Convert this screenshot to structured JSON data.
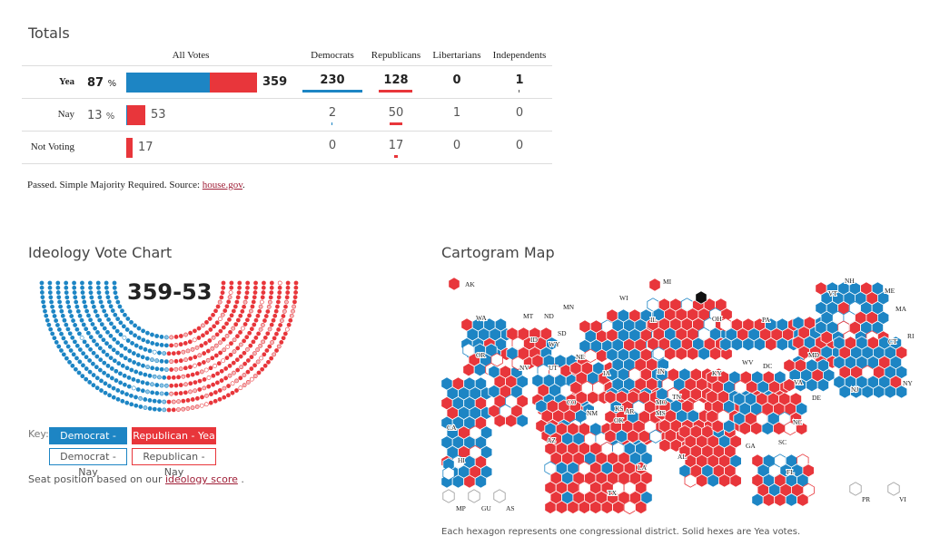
{
  "totals": {
    "title": "Totals",
    "headers": [
      "All Votes",
      "Democrats",
      "Republicans",
      "Libertarians",
      "Independents"
    ],
    "rows": [
      {
        "label": "Yea",
        "pct": "87",
        "pct_unit": "%",
        "all": "359",
        "all_blue_fraction": 0.64,
        "all_red_fraction": 0.36,
        "dem": "230",
        "rep": "128",
        "lib": "0",
        "ind": "1"
      },
      {
        "label": "Nay",
        "pct": "13",
        "pct_unit": "%",
        "all": "53",
        "all_blue_fraction": 0.04,
        "all_red_fraction": 0.96,
        "dem": "2",
        "rep": "50",
        "lib": "1",
        "ind": "0"
      },
      {
        "label": "Not Voting",
        "pct": "",
        "pct_unit": "",
        "all": "17",
        "all_blue_fraction": 0.0,
        "all_red_fraction": 1.0,
        "dem": "0",
        "rep": "17",
        "lib": "0",
        "ind": "0"
      }
    ],
    "footnote_text": "Passed. Simple Majority Required. Source: ",
    "footnote_link": "house.gov",
    "footnote_end": "."
  },
  "ideology": {
    "title": "Ideology Vote Chart",
    "score": "359-53",
    "key_label": "Key:",
    "key_dem_yea": "Democrat - Yea",
    "key_rep_yea": "Republican - Yea",
    "key_dem_nay": "Democrat - Nay",
    "key_rep_nay": "Republican - Nay",
    "note_text": "Seat position based on our ",
    "note_link": "ideology score",
    "note_end": " ."
  },
  "cartogram": {
    "title": "Cartogram Map",
    "state_labels": [
      "AK",
      "MI",
      "NH",
      "VT",
      "ME",
      "WI",
      "MN",
      "MA",
      "WA",
      "MT",
      "ND",
      "IL",
      "OH",
      "PA",
      "RI",
      "CT",
      "SD",
      "WY",
      "ID",
      "OR",
      "NE",
      "NV",
      "UT",
      "IA",
      "IN",
      "WV",
      "MD",
      "KY",
      "DE",
      "NJ",
      "NY",
      "CO",
      "VA",
      "TN",
      "MO",
      "KS",
      "NM",
      "OK",
      "AR",
      "MS",
      "NC",
      "SC",
      "CA",
      "AZ",
      "GA",
      "AL",
      "TX",
      "LA",
      "FL",
      "HI",
      "MP",
      "GU",
      "AS",
      "PR",
      "VI",
      "DC"
    ],
    "caption": "Each hexagon represents one congressional district. Solid hexes are Yea votes."
  },
  "colors": {
    "democrat": "#1d85c4",
    "republican": "#e8363b",
    "dem_nay_light": "#8ec3e3",
    "rep_nay_light": "#f3b9bb"
  }
}
